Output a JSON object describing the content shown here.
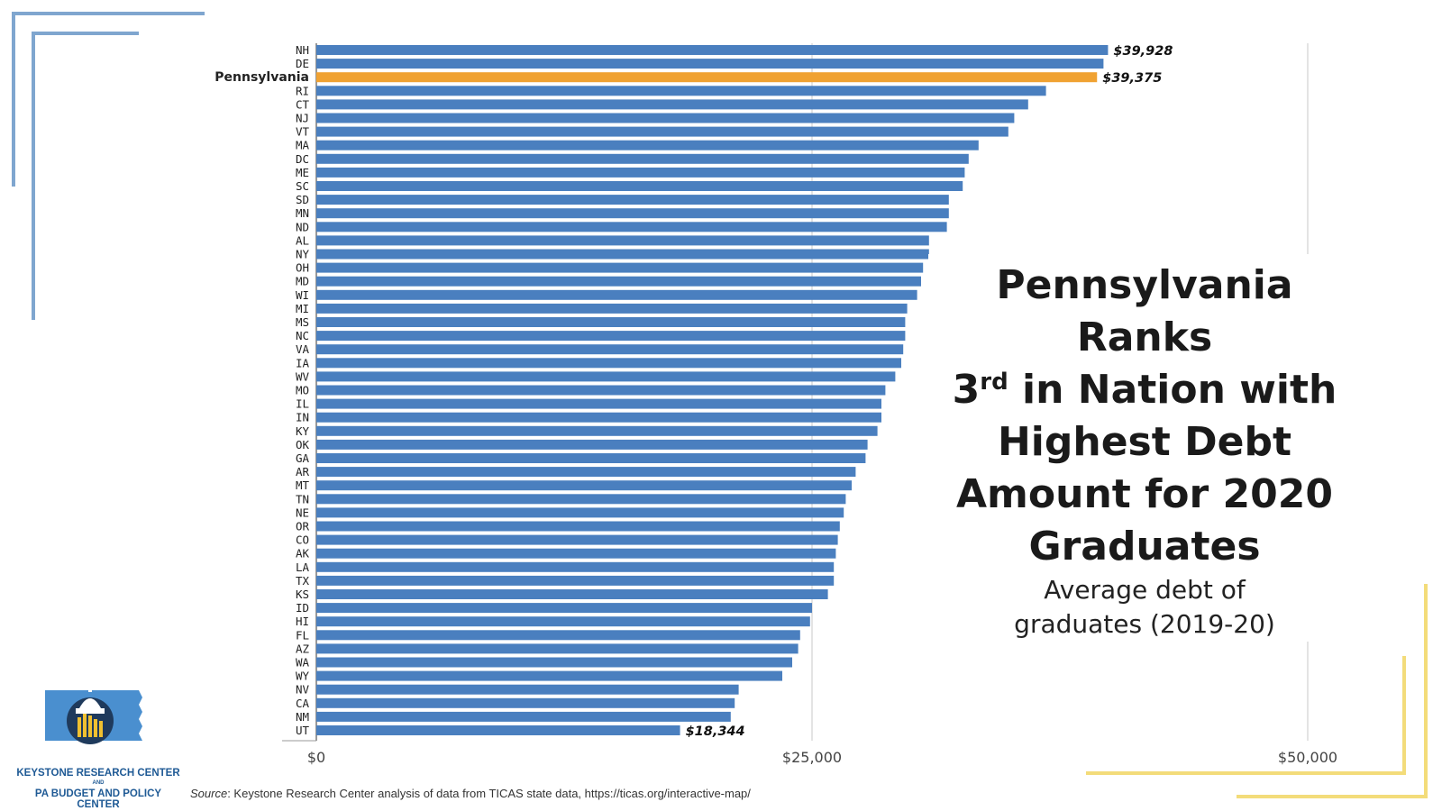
{
  "chart_data": {
    "type": "bar",
    "orientation": "horizontal",
    "title_lines": [
      "Pennsylvania Ranks",
      "3",
      "rd",
      " in Nation with",
      "Highest Debt",
      "Amount for 2020",
      "Graduates"
    ],
    "subtitle_lines": [
      "Average debt of",
      "graduates (2019-20)"
    ],
    "categories": [
      "NH",
      "DE",
      "Pennsylvania",
      "RI",
      "CT",
      "NJ",
      "VT",
      "MA",
      "DC",
      "ME",
      "SC",
      "SD",
      "MN",
      "ND",
      "AL",
      "NY",
      "OH",
      "MD",
      "WI",
      "MI",
      "MS",
      "NC",
      "VA",
      "IA",
      "WV",
      "MO",
      "IL",
      "IN",
      "KY",
      "OK",
      "GA",
      "AR",
      "MT",
      "TN",
      "NE",
      "OR",
      "CO",
      "AK",
      "LA",
      "TX",
      "KS",
      "ID",
      "HI",
      "FL",
      "AZ",
      "WA",
      "WY",
      "NV",
      "CA",
      "NM",
      "UT"
    ],
    "values": [
      39928,
      39700,
      39375,
      36800,
      35900,
      35200,
      34900,
      33400,
      32900,
      32700,
      32600,
      31900,
      31900,
      31800,
      30900,
      30900,
      30600,
      30500,
      30300,
      29800,
      29700,
      29700,
      29600,
      29500,
      29200,
      28700,
      28500,
      28500,
      28300,
      27800,
      27700,
      27200,
      27000,
      26700,
      26600,
      26400,
      26300,
      26200,
      26100,
      26100,
      25800,
      25000,
      24900,
      24400,
      24300,
      24000,
      23500,
      21300,
      21100,
      20900,
      18344
    ],
    "data_labels": [
      {
        "category": "NH",
        "text": "$39,928"
      },
      {
        "category": "Pennsylvania",
        "text": "$39,375"
      },
      {
        "category": "UT",
        "text": "$18,344"
      }
    ],
    "highlight": "Pennsylvania",
    "x_ticks": [
      {
        "value": 0,
        "label": "$0"
      },
      {
        "value": 25000,
        "label": "$25,000"
      },
      {
        "value": 50000,
        "label": "$50,000"
      }
    ],
    "xlim": [
      0,
      50000
    ],
    "grid": true,
    "colors": {
      "bar": "#4a7fbf",
      "highlight": "#f0a232",
      "grid": "#c8c8c8",
      "frame_blue": "#7fa6cf",
      "frame_yellow": "#f3dc7a"
    }
  },
  "source": {
    "label": "Source",
    "text": ": Keystone Research Center analysis of data from TICAS state data, https://ticas.org/interactive-map/"
  },
  "logo": {
    "line1": "KEYSTONE RESEARCH CENTER",
    "and": "AND",
    "line2": "PA BUDGET AND POLICY CENTER"
  }
}
